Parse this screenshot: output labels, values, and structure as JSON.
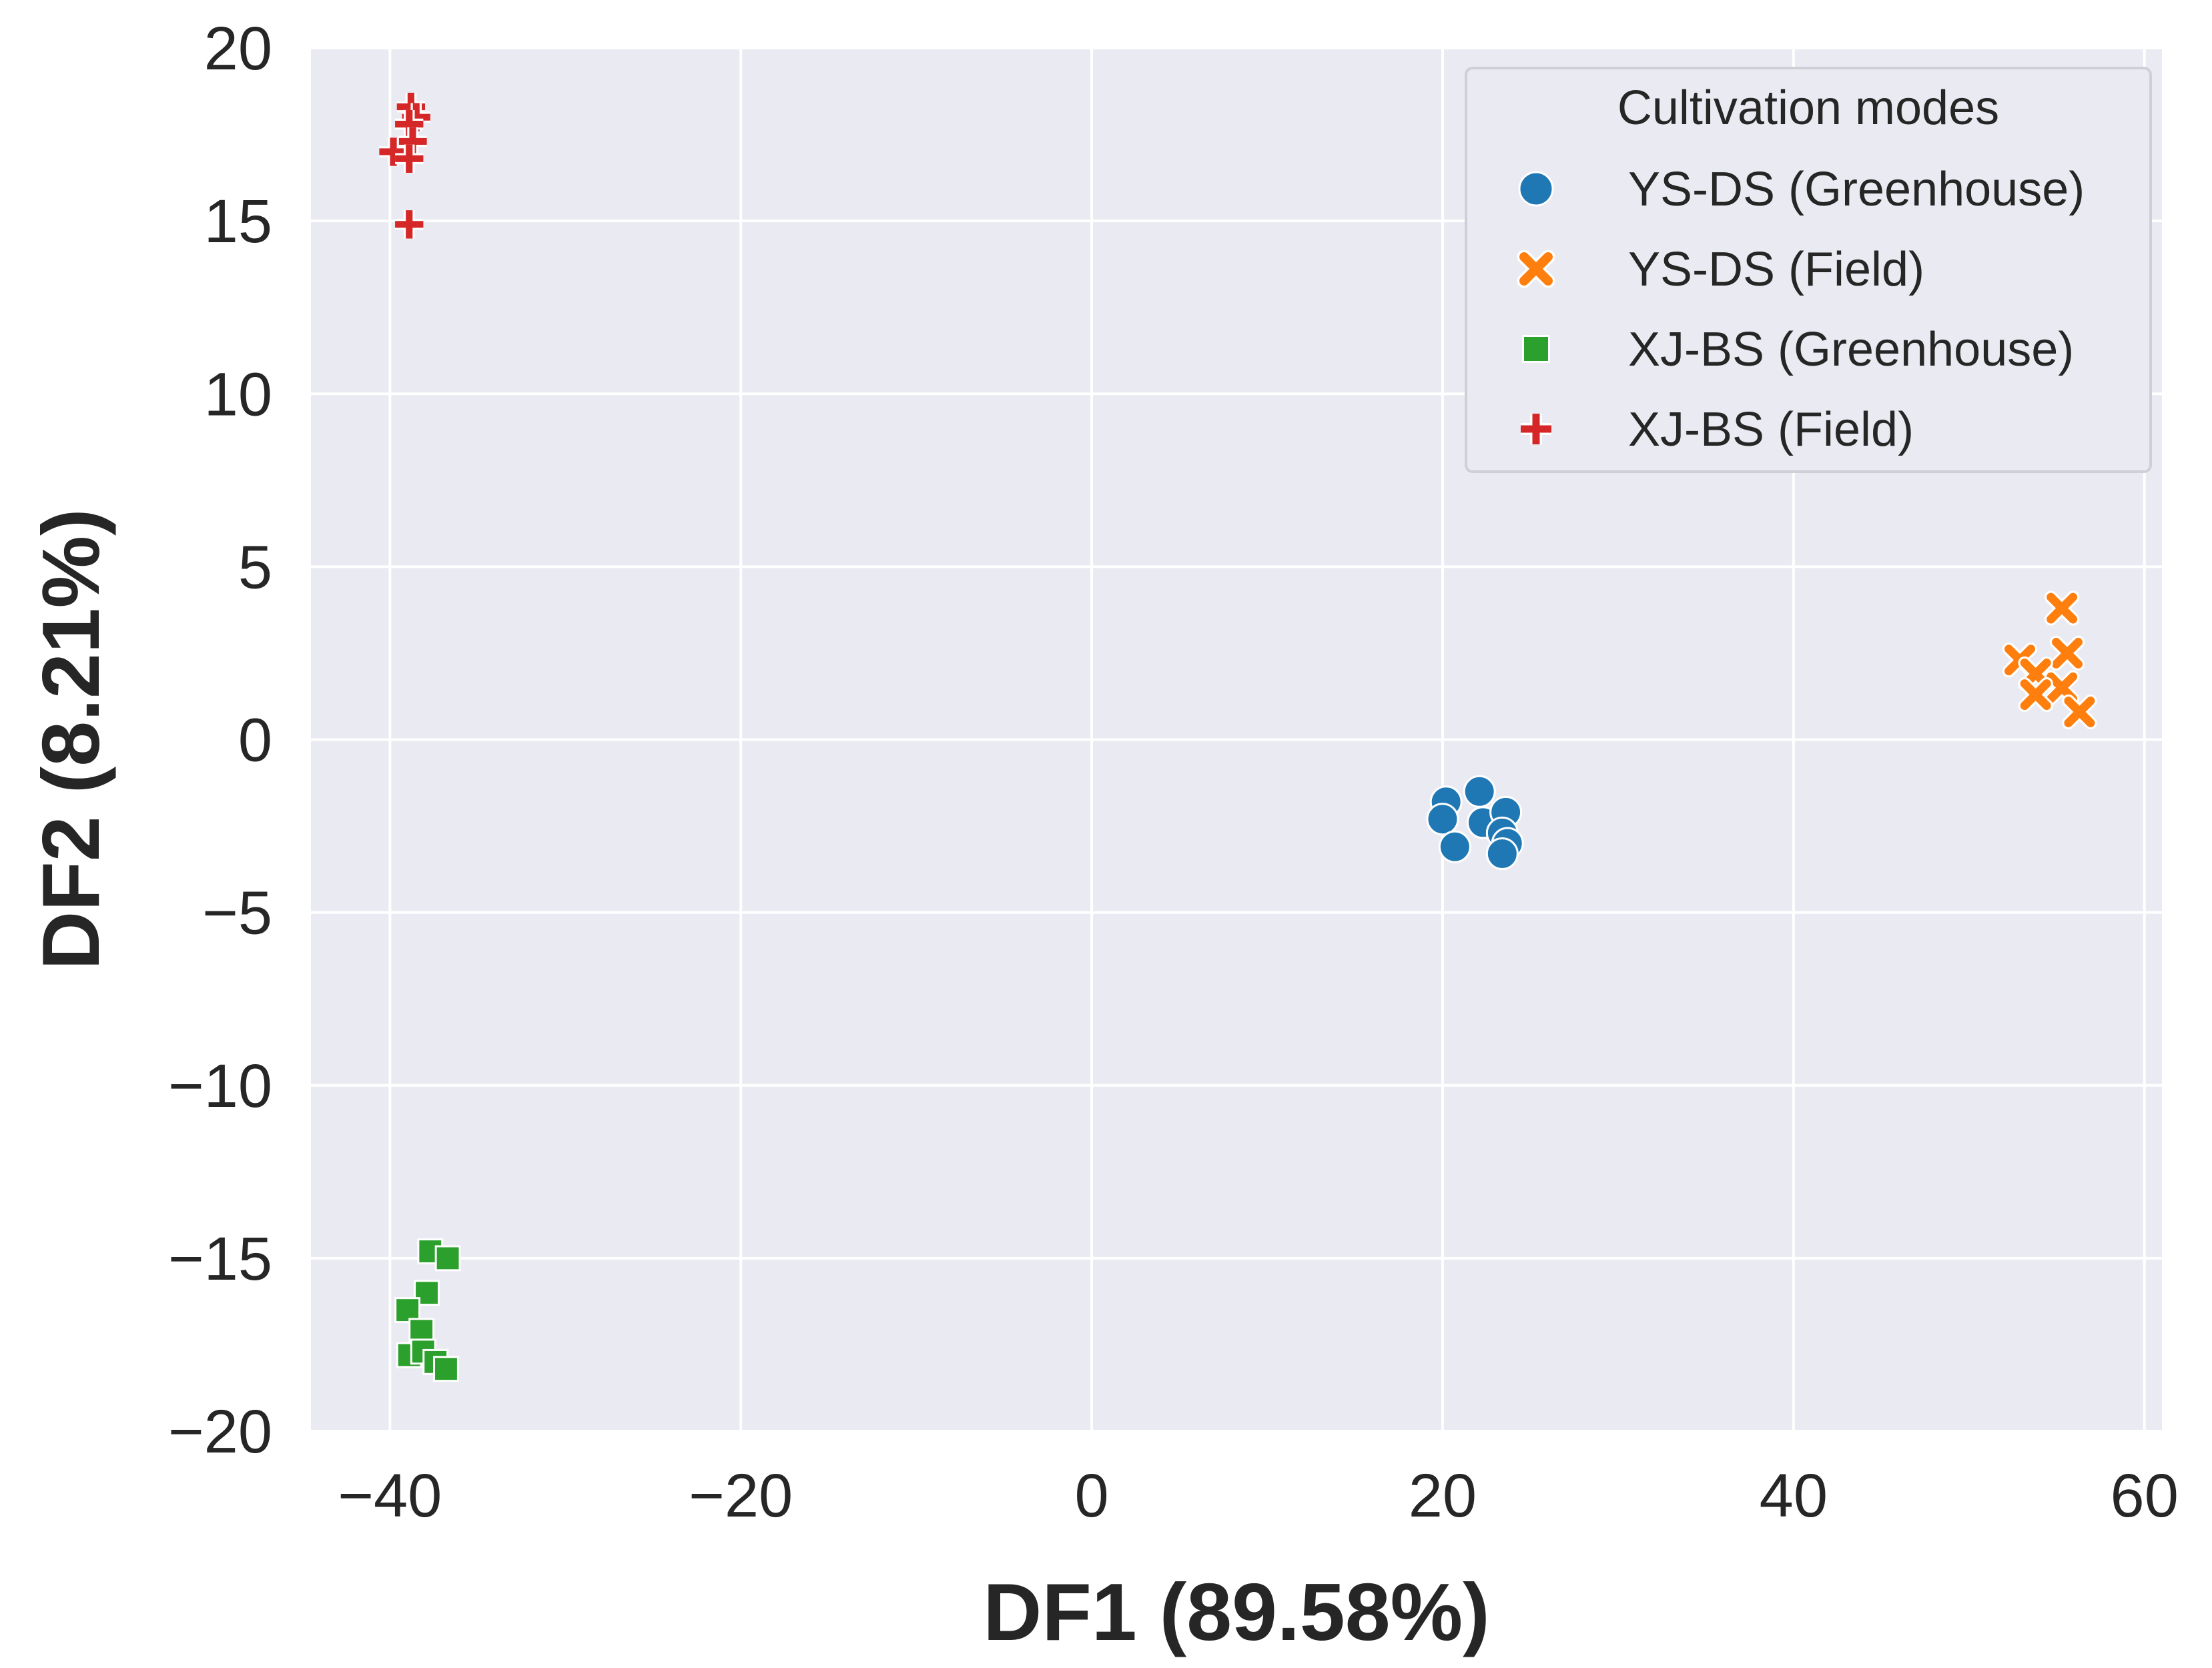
{
  "chart_data": {
    "type": "scatter",
    "title": "",
    "xlabel": "DF1 (89.58%)",
    "ylabel": "DF2 (8.21%)",
    "xlim": [
      -44.5,
      61
    ],
    "ylim": [
      -20,
      20
    ],
    "xticks": [
      -40,
      -20,
      0,
      20,
      40,
      60
    ],
    "yticks": [
      -20,
      -15,
      -10,
      -5,
      0,
      5,
      10,
      15,
      20
    ],
    "xtick_labels": [
      "−40",
      "−20",
      "0",
      "20",
      "40",
      "60"
    ],
    "ytick_labels": [
      "−20",
      "−15",
      "−10",
      "−5",
      "0",
      "5",
      "10",
      "15",
      "20"
    ],
    "grid": true,
    "legend": {
      "title": "Cultivation modes",
      "position": "top-right"
    },
    "series": [
      {
        "name": "YS-DS (Greenhouse)",
        "marker": "circle",
        "color": "#1f77b4",
        "points": [
          {
            "x": 22.1,
            "y": -1.5
          },
          {
            "x": 20.2,
            "y": -1.8
          },
          {
            "x": 20.0,
            "y": -2.3
          },
          {
            "x": 22.3,
            "y": -2.4
          },
          {
            "x": 23.6,
            "y": -2.1
          },
          {
            "x": 20.7,
            "y": -3.1
          },
          {
            "x": 23.4,
            "y": -2.7
          },
          {
            "x": 23.7,
            "y": -3.0
          },
          {
            "x": 23.4,
            "y": -3.3
          }
        ]
      },
      {
        "name": "YS-DS (Field)",
        "marker": "x",
        "color": "#ff7f0e",
        "points": [
          {
            "x": 55.3,
            "y": 3.8
          },
          {
            "x": 55.6,
            "y": 2.5
          },
          {
            "x": 52.9,
            "y": 2.3
          },
          {
            "x": 53.8,
            "y": 1.9
          },
          {
            "x": 55.3,
            "y": 1.5
          },
          {
            "x": 53.8,
            "y": 1.3
          },
          {
            "x": 56.3,
            "y": 0.8
          }
        ]
      },
      {
        "name": "XJ-BS (Greenhouse)",
        "marker": "square",
        "color": "#2ca02c",
        "points": [
          {
            "x": -37.7,
            "y": -14.8
          },
          {
            "x": -36.7,
            "y": -15.0
          },
          {
            "x": -37.9,
            "y": -16.0
          },
          {
            "x": -39.0,
            "y": -16.5
          },
          {
            "x": -38.2,
            "y": -17.1
          },
          {
            "x": -38.9,
            "y": -17.8
          },
          {
            "x": -38.1,
            "y": -17.7
          },
          {
            "x": -37.4,
            "y": -18.0
          },
          {
            "x": -36.8,
            "y": -18.2
          }
        ]
      },
      {
        "name": "XJ-BS (Field)",
        "marker": "plus",
        "color": "#d62728",
        "points": [
          {
            "x": -38.8,
            "y": 18.3
          },
          {
            "x": -38.5,
            "y": 18.0
          },
          {
            "x": -38.9,
            "y": 17.8
          },
          {
            "x": -38.7,
            "y": 17.3
          },
          {
            "x": -39.8,
            "y": 17.0
          },
          {
            "x": -38.9,
            "y": 16.8
          },
          {
            "x": -38.9,
            "y": 14.9
          }
        ]
      }
    ]
  }
}
